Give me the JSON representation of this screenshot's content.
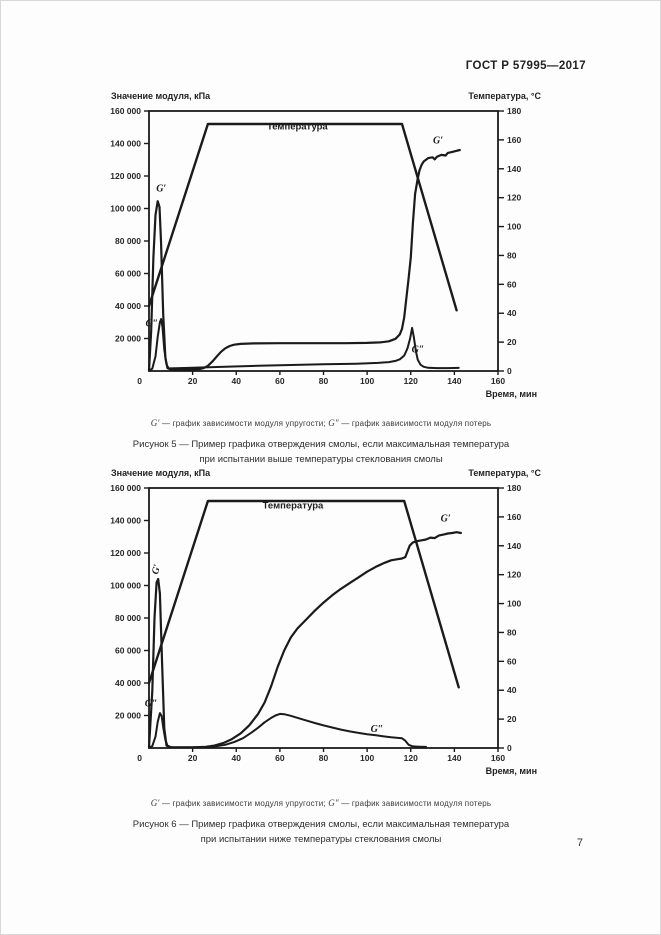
{
  "header": {
    "doc_number": "ГОСТ Р 57995—2017"
  },
  "footer": {
    "page_number": "7"
  },
  "colors": {
    "ink": "#1b1b1b",
    "text": "#2e2e2e"
  },
  "figures": [
    {
      "legend": {
        "symbol1": "G′",
        "text1": " — график зависимости модуля упругости; ",
        "symbol2": "G″",
        "text2": " — график зависимости модуля потерь"
      },
      "caption_line1": "Рисунок 5 — Пример графика отверждения смолы, если максимальная температура",
      "caption_line2": "при испытании выше температуры стеклования смолы"
    },
    {
      "legend": {
        "symbol1": "G′",
        "text1": " — график зависимости модуля упругости; ",
        "symbol2": "G″",
        "text2": " — график зависимости модуля потерь"
      },
      "caption_line1": "Рисунок 6 — Пример графика отверждения смолы, если максимальная температура",
      "caption_line2": "при испытании ниже температуры стеклования смолы"
    }
  ],
  "chart_data": [
    {
      "type": "line",
      "grid": false,
      "legend_position": "none",
      "left_axis": {
        "label": "Значение модуля, кПа",
        "range": [
          0,
          160000
        ],
        "tick_step": 20000,
        "tick_labels": [
          "0",
          "20 000",
          "40 000",
          "60 000",
          "80 000",
          "100 000",
          "120 000",
          "140 000",
          "160 000"
        ]
      },
      "right_axis": {
        "label": "Температура, °С",
        "range": [
          0,
          180
        ],
        "tick_step": 20,
        "tick_labels": [
          "0",
          "20",
          "40",
          "60",
          "80",
          "100",
          "120",
          "140",
          "160",
          "180"
        ]
      },
      "x_axis": {
        "label": "Время, мин",
        "range": [
          0,
          160
        ],
        "tick_step": 20,
        "tick_labels": [
          "0",
          "20",
          "40",
          "60",
          "80",
          "100",
          "120",
          "140",
          "160"
        ]
      },
      "series": [
        {
          "name": "Температура",
          "axis": "right",
          "width": 2.4,
          "points": [
            [
              0,
              45
            ],
            [
              27,
              171
            ],
            [
              116,
              171
            ],
            [
              141,
              42
            ]
          ]
        },
        {
          "name": "G'",
          "axis": "left",
          "width": 2.2,
          "points": [
            [
              0,
              400
            ],
            [
              1,
              25000
            ],
            [
              2,
              70000
            ],
            [
              3,
              96000
            ],
            [
              4,
              104500
            ],
            [
              4.8,
              101000
            ],
            [
              5.5,
              80000
            ],
            [
              6.5,
              35000
            ],
            [
              7.5,
              8000
            ],
            [
              8.5,
              1800
            ],
            [
              10,
              900
            ],
            [
              20,
              900
            ],
            [
              23,
              1100
            ],
            [
              25,
              1800
            ],
            [
              27,
              3200
            ],
            [
              29,
              5800
            ],
            [
              31,
              8800
            ],
            [
              33,
              11800
            ],
            [
              35,
              14000
            ],
            [
              37,
              15400
            ],
            [
              39,
              16200
            ],
            [
              42,
              16700
            ],
            [
              48,
              17000
            ],
            [
              60,
              17100
            ],
            [
              75,
              17100
            ],
            [
              90,
              17100
            ],
            [
              100,
              17300
            ],
            [
              106,
              17600
            ],
            [
              110,
              18300
            ],
            [
              113,
              19800
            ],
            [
              115,
              22500
            ],
            [
              116,
              26000
            ],
            [
              117,
              33000
            ],
            [
              118,
              45000
            ],
            [
              119,
              57000
            ],
            [
              120,
              70000
            ],
            [
              121,
              91000
            ],
            [
              122,
              109000
            ],
            [
              123,
              117000
            ],
            [
              124,
              123500
            ],
            [
              125,
              127000
            ],
            [
              126,
              129000
            ],
            [
              128,
              131000
            ],
            [
              130,
              131500
            ],
            [
              131,
              130200
            ],
            [
              132,
              131800
            ],
            [
              134,
              133000
            ],
            [
              136,
              132600
            ],
            [
              137,
              134200
            ],
            [
              139,
              134800
            ],
            [
              141,
              135500
            ],
            [
              142.5,
              136000
            ]
          ]
        },
        {
          "name": "G''",
          "axis": "left",
          "width": 2,
          "points": [
            [
              0,
              200
            ],
            [
              1.5,
              1500
            ],
            [
              3,
              9000
            ],
            [
              4,
              21000
            ],
            [
              5,
              30000
            ],
            [
              5.6,
              32000
            ],
            [
              6.2,
              27000
            ],
            [
              7,
              13000
            ],
            [
              8,
              4000
            ],
            [
              9,
              1600
            ],
            [
              12,
              1700
            ],
            [
              20,
              2000
            ],
            [
              35,
              2600
            ],
            [
              50,
              3200
            ],
            [
              65,
              3700
            ],
            [
              80,
              4100
            ],
            [
              95,
              4500
            ],
            [
              105,
              5000
            ],
            [
              110,
              5500
            ],
            [
              113,
              6200
            ],
            [
              115,
              7200
            ],
            [
              117,
              9500
            ],
            [
              118.5,
              14000
            ],
            [
              119.7,
              20000
            ],
            [
              120.6,
              26500
            ],
            [
              121.4,
              21000
            ],
            [
              122.3,
              12500
            ],
            [
              123.2,
              7000
            ],
            [
              124.5,
              3800
            ],
            [
              126,
              2600
            ],
            [
              128,
              2000
            ],
            [
              132,
              1800
            ],
            [
              137,
              1800
            ],
            [
              142,
              1900
            ]
          ]
        }
      ],
      "annotations": [
        {
          "text": "Температура",
          "x": 68,
          "y": 148500,
          "style": "plain"
        },
        {
          "text": "G′",
          "x": 5.6,
          "y": 110500,
          "style": "sym"
        },
        {
          "text": "G″",
          "x": 1.3,
          "y": 27500,
          "style": "sym"
        },
        {
          "text": "G′",
          "x": 132.5,
          "y": 140000,
          "style": "sym"
        },
        {
          "text": "G″",
          "x": 123.3,
          "y": 11500,
          "style": "sym"
        }
      ]
    },
    {
      "type": "line",
      "grid": false,
      "legend_position": "none",
      "left_axis": {
        "label": "Значение модуля, кПа",
        "range": [
          0,
          160000
        ],
        "tick_step": 20000,
        "tick_labels": [
          "0",
          "20 000",
          "40 000",
          "60 000",
          "80 000",
          "100 000",
          "120 000",
          "140 000",
          "160 000"
        ]
      },
      "right_axis": {
        "label": "Температура, °С",
        "range": [
          0,
          180
        ],
        "tick_step": 20,
        "tick_labels": [
          "0",
          "20",
          "40",
          "60",
          "80",
          "100",
          "120",
          "140",
          "160",
          "180"
        ]
      },
      "x_axis": {
        "label": "Время, мин",
        "range": [
          0,
          160
        ],
        "tick_step": 20,
        "tick_labels": [
          "0",
          "20",
          "40",
          "60",
          "80",
          "100",
          "120",
          "140",
          "160"
        ]
      },
      "series": [
        {
          "name": "Температура",
          "axis": "right",
          "width": 2.4,
          "points": [
            [
              0,
              45
            ],
            [
              27,
              171
            ],
            [
              117,
              171
            ],
            [
              142,
              42
            ]
          ]
        },
        {
          "name": "G'",
          "axis": "left",
          "width": 2.2,
          "points": [
            [
              0,
              400
            ],
            [
              1.5,
              35000
            ],
            [
              2.5,
              80000
            ],
            [
              3.5,
              102000
            ],
            [
              4.2,
              104000
            ],
            [
              5,
              95000
            ],
            [
              6,
              52000
            ],
            [
              7,
              12000
            ],
            [
              8,
              1500
            ],
            [
              10,
              500
            ],
            [
              20,
              400
            ],
            [
              26,
              700
            ],
            [
              30,
              1500
            ],
            [
              34,
              3000
            ],
            [
              38,
              5500
            ],
            [
              42,
              9000
            ],
            [
              46,
              14000
            ],
            [
              50,
              21000
            ],
            [
              53,
              28000
            ],
            [
              56,
              38000
            ],
            [
              59,
              50000
            ],
            [
              62,
              60000
            ],
            [
              65,
              68000
            ],
            [
              68,
              73500
            ],
            [
              72,
              79000
            ],
            [
              76,
              84500
            ],
            [
              80,
              89500
            ],
            [
              84,
              94000
            ],
            [
              88,
              98000
            ],
            [
              92,
              101500
            ],
            [
              96,
              105000
            ],
            [
              100,
              108500
            ],
            [
              104,
              111500
            ],
            [
              108,
              114000
            ],
            [
              111,
              115500
            ],
            [
              114,
              116200
            ],
            [
              116,
              116600
            ],
            [
              117.5,
              117500
            ],
            [
              118.5,
              121000
            ],
            [
              119.5,
              124500
            ],
            [
              121,
              126500
            ],
            [
              123,
              127300
            ],
            [
              125,
              127800
            ],
            [
              127,
              128300
            ],
            [
              129,
              129500
            ],
            [
              131,
              129200
            ],
            [
              133,
              130800
            ],
            [
              135,
              131300
            ],
            [
              137,
              132000
            ],
            [
              139,
              132300
            ],
            [
              141,
              132800
            ],
            [
              143,
              132300
            ]
          ]
        },
        {
          "name": "G''",
          "axis": "left",
          "width": 2,
          "points": [
            [
              0,
              200
            ],
            [
              1.5,
              1200
            ],
            [
              3,
              7000
            ],
            [
              4,
              16000
            ],
            [
              5,
              21500
            ],
            [
              5.8,
              19500
            ],
            [
              6.6,
              12000
            ],
            [
              7.5,
              5000
            ],
            [
              8.5,
              1400
            ],
            [
              10,
              500
            ],
            [
              20,
              400
            ],
            [
              27,
              600
            ],
            [
              31,
              1100
            ],
            [
              35,
              2000
            ],
            [
              39,
              3600
            ],
            [
              43,
              6000
            ],
            [
              47,
              9500
            ],
            [
              50,
              12500
            ],
            [
              53,
              15800
            ],
            [
              56,
              18500
            ],
            [
              58,
              20000
            ],
            [
              60,
              21000
            ],
            [
              62,
              20800
            ],
            [
              65,
              19800
            ],
            [
              68,
              18600
            ],
            [
              72,
              17000
            ],
            [
              76,
              15400
            ],
            [
              80,
              13900
            ],
            [
              84,
              12600
            ],
            [
              88,
              11300
            ],
            [
              92,
              10200
            ],
            [
              96,
              9300
            ],
            [
              100,
              8500
            ],
            [
              104,
              7800
            ],
            [
              108,
              7100
            ],
            [
              111,
              6600
            ],
            [
              114,
              6200
            ],
            [
              116,
              6000
            ],
            [
              117.5,
              4500
            ],
            [
              119,
              2000
            ],
            [
              121,
              1000
            ],
            [
              124,
              800
            ],
            [
              127,
              700
            ]
          ]
        }
      ],
      "annotations": [
        {
          "text": "Температура",
          "x": 66,
          "y": 147500,
          "style": "plain"
        },
        {
          "text": "G′",
          "x": 4.6,
          "y": 109500,
          "style": "sym",
          "rotate": -75
        },
        {
          "text": "G″",
          "x": 1.0,
          "y": 25500,
          "style": "sym"
        },
        {
          "text": "G′",
          "x": 136,
          "y": 139500,
          "style": "sym"
        },
        {
          "text": "G″",
          "x": 104.5,
          "y": 9800,
          "style": "sym"
        }
      ]
    }
  ]
}
